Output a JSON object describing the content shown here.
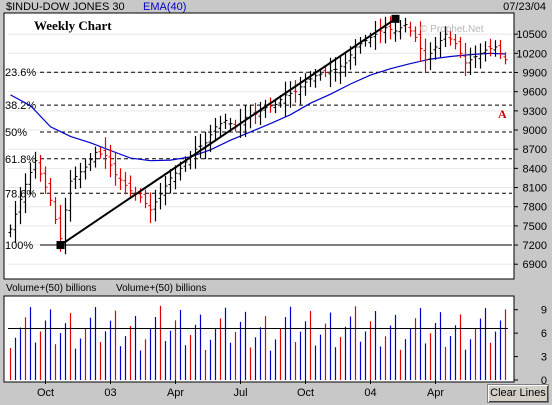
{
  "header": {
    "symbol": "$INDU-DOW JONES 30",
    "ema_label": "EMA(40)",
    "date": "07/23/04",
    "panel_title": "Weekly Chart",
    "watermark": "© Prophet.Net",
    "annotation": "A"
  },
  "volume_header": {
    "label_1": "Volume+(50) billions",
    "label_2": "Volume+(50) billions"
  },
  "toolbar": {
    "clear_lines_label": "Clear Lines"
  },
  "colors": {
    "background": "#ffffff",
    "frame": "#c8c8c8",
    "up_bar": "#000000",
    "down_bar": "#e00000",
    "ema_line": "#0000cc",
    "volume_bar": "#0000cc",
    "volume_down_bar": "#e00000",
    "volume_avg": "#000000",
    "annotation": "#cc0000"
  },
  "chart_data": [
    {
      "type": "ohlc",
      "title": "$INDU-DOW JONES 30",
      "y_ticks": [
        6900,
        7200,
        7500,
        7800,
        8100,
        8400,
        8700,
        9000,
        9300,
        9600,
        9900,
        10200,
        10500
      ],
      "ylim": [
        6700,
        10800
      ],
      "x_ticks": [
        "Oct",
        "03",
        "Apr",
        "Jul",
        "Oct",
        "04",
        "Apr"
      ],
      "x_tick_weeks": [
        7,
        20,
        33,
        46,
        59,
        72,
        85
      ],
      "weeks": 100,
      "fib_levels": [
        {
          "label": "23.6%",
          "value": 9905
        },
        {
          "label": "38.2%",
          "value": 9390
        },
        {
          "label": "50%",
          "value": 8970
        },
        {
          "label": "61.8%",
          "value": 8550
        },
        {
          "label": "78.6%",
          "value": 8010
        },
        {
          "label": "100%",
          "value": 7200
        }
      ],
      "trendline": {
        "start": {
          "week": 10,
          "value": 7200
        },
        "end": {
          "week": 77,
          "value": 10740
        }
      },
      "ohlc_anchors": [
        [
          0,
          7450
        ],
        [
          3,
          8150
        ],
        [
          5,
          8520
        ],
        [
          8,
          7900
        ],
        [
          10,
          7300
        ],
        [
          12,
          8200
        ],
        [
          15,
          8420
        ],
        [
          17,
          8650
        ],
        [
          19,
          8600
        ],
        [
          21,
          8300
        ],
        [
          24,
          8050
        ],
        [
          26,
          7950
        ],
        [
          28,
          7750
        ],
        [
          30,
          8000
        ],
        [
          32,
          8250
        ],
        [
          34,
          8400
        ],
        [
          37,
          8700
        ],
        [
          39,
          8800
        ],
        [
          41,
          9050
        ],
        [
          43,
          9150
        ],
        [
          45,
          9050
        ],
        [
          47,
          9200
        ],
        [
          49,
          9250
        ],
        [
          51,
          9350
        ],
        [
          53,
          9400
        ],
        [
          55,
          9550
        ],
        [
          57,
          9600
        ],
        [
          59,
          9750
        ],
        [
          61,
          9850
        ],
        [
          63,
          9900
        ],
        [
          65,
          9950
        ],
        [
          67,
          10050
        ],
        [
          69,
          10300
        ],
        [
          71,
          10400
        ],
        [
          73,
          10500
        ],
        [
          75,
          10600
        ],
        [
          77,
          10550
        ],
        [
          79,
          10650
        ],
        [
          81,
          10450
        ],
        [
          83,
          10100
        ],
        [
          85,
          10300
        ],
        [
          87,
          10500
        ],
        [
          89,
          10350
        ],
        [
          91,
          10050
        ],
        [
          93,
          10150
        ],
        [
          95,
          10250
        ],
        [
          97,
          10300
        ],
        [
          99,
          10100
        ]
      ],
      "ema": [
        [
          0,
          9550
        ],
        [
          4,
          9380
        ],
        [
          8,
          9050
        ],
        [
          12,
          8900
        ],
        [
          16,
          8800
        ],
        [
          20,
          8680
        ],
        [
          24,
          8560
        ],
        [
          28,
          8520
        ],
        [
          32,
          8530
        ],
        [
          36,
          8580
        ],
        [
          40,
          8690
        ],
        [
          44,
          8840
        ],
        [
          48,
          8970
        ],
        [
          52,
          9100
        ],
        [
          56,
          9240
        ],
        [
          60,
          9420
        ],
        [
          64,
          9560
        ],
        [
          68,
          9720
        ],
        [
          72,
          9860
        ],
        [
          76,
          9960
        ],
        [
          80,
          10040
        ],
        [
          84,
          10110
        ],
        [
          88,
          10150
        ],
        [
          92,
          10180
        ],
        [
          96,
          10200
        ],
        [
          99,
          10190
        ]
      ]
    },
    {
      "type": "bar",
      "title": "Volume+(50) billions",
      "y_ticks": [
        0,
        3,
        6,
        9
      ],
      "ylim": [
        0,
        10.5
      ],
      "x_ticks": [
        "Oct",
        "03",
        "Apr",
        "Jul",
        "Oct",
        "04",
        "Apr"
      ],
      "avg_level": 6.6,
      "volume_anchors": [
        [
          0,
          6.8
        ],
        [
          5,
          6.6
        ],
        [
          10,
          6.9
        ],
        [
          15,
          6.6
        ],
        [
          20,
          6.7
        ],
        [
          25,
          6.4
        ],
        [
          30,
          6.8
        ],
        [
          35,
          6.7
        ],
        [
          40,
          6.5
        ],
        [
          45,
          6.6
        ],
        [
          50,
          6.3
        ],
        [
          55,
          6.7
        ],
        [
          60,
          6.6
        ],
        [
          65,
          6.9
        ],
        [
          70,
          6.7
        ],
        [
          75,
          6.5
        ],
        [
          80,
          6.6
        ],
        [
          85,
          6.4
        ],
        [
          90,
          6.6
        ],
        [
          95,
          6.5
        ],
        [
          99,
          6.8
        ]
      ]
    }
  ]
}
